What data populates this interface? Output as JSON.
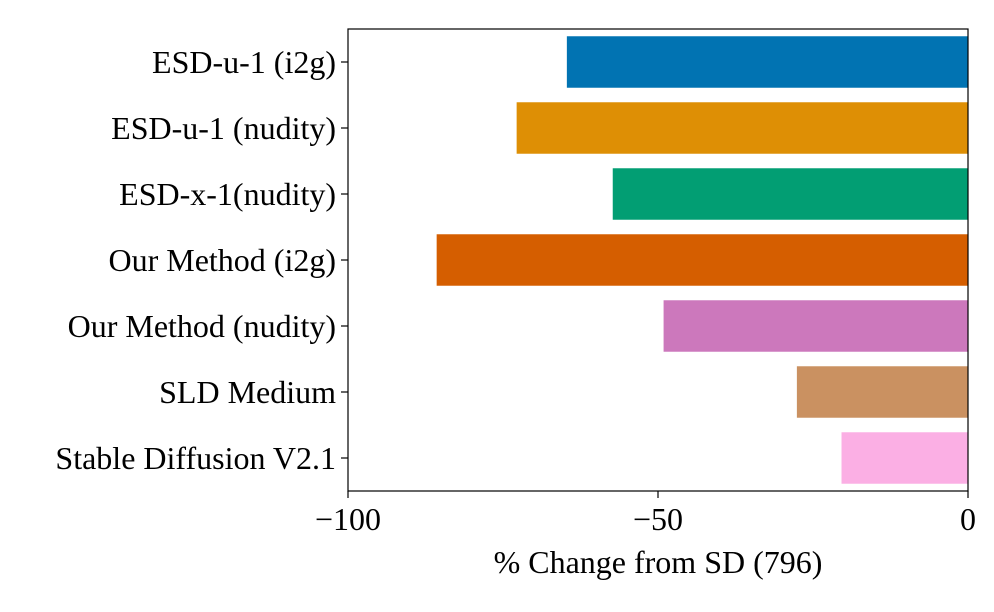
{
  "chart_data": {
    "type": "bar",
    "orientation": "horizontal",
    "categories": [
      "ESD-u-1 (i2g)",
      "ESD-u-1 (nudity)",
      "ESD-x-1(nudity)",
      "Our Method (i2g)",
      "Our Method (nudity)",
      "SLD Medium",
      "Stable Diffusion  V2.1"
    ],
    "values": [
      -64.7,
      -72.8,
      -57.3,
      -85.7,
      -49.1,
      -27.6,
      -20.4
    ],
    "colors": [
      "#0173b2",
      "#de8f05",
      "#029e73",
      "#d55e00",
      "#cc78bc",
      "#ca9161",
      "#fbafe4"
    ],
    "xlabel": "% Change from SD (796)",
    "ylabel": "",
    "xlim": [
      -100,
      0
    ],
    "xticks": [
      -100,
      -50,
      0
    ],
    "xtick_labels": [
      "−100",
      "−50",
      "0"
    ],
    "grid": false,
    "legend": "none"
  }
}
